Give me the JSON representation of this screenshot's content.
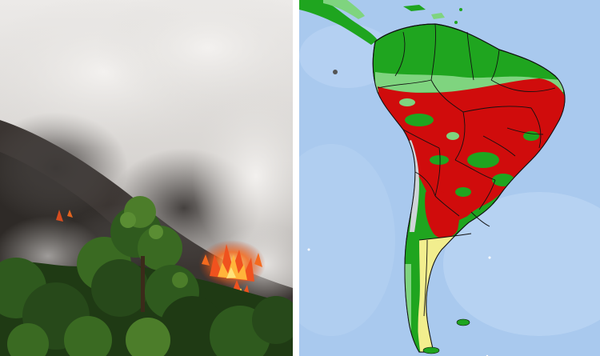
{
  "left_photo": {
    "description_icon": "forest-fire-photo",
    "colors": {
      "smoke_light": "#e6e4e2",
      "smoke_mid": "#b9b6b3",
      "smoke_dark": "#4a4644",
      "forest_dark": "#1f3a14",
      "forest_mid": "#2f5a1e",
      "forest_light": "#4c7d2a",
      "flame_core": "#ffd24a",
      "flame_outer": "#f0521e"
    }
  },
  "right_map": {
    "description_icon": "south-america-heat-map",
    "colors": {
      "ocean": "#a9c9ee",
      "ocean_light": "#bfd8f5",
      "green": "#1fa51f",
      "light_green": "#7fd47f",
      "red": "#d00c0c",
      "dark_red": "#a80a0a",
      "yellow": "#f2ee8e",
      "grey": "#cfd4d8",
      "border": "#111111"
    }
  }
}
